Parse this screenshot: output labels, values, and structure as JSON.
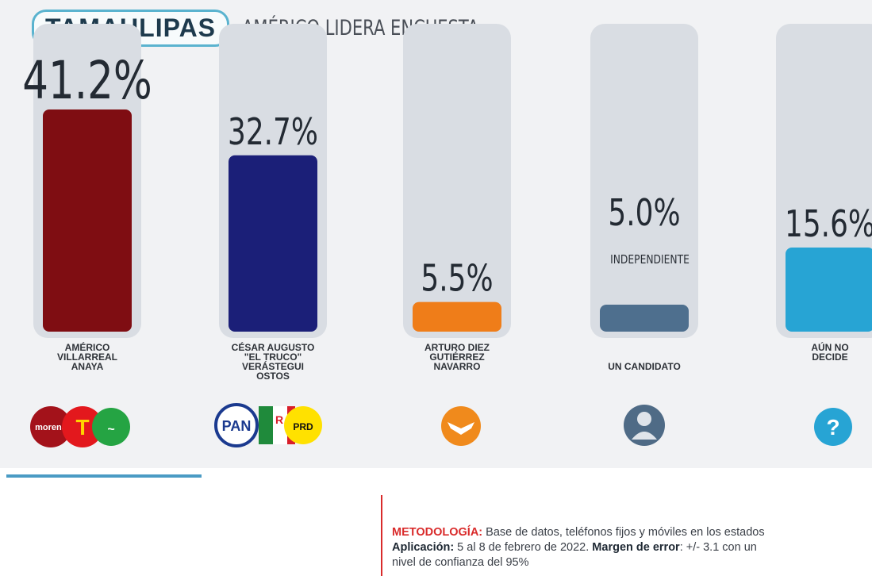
{
  "header": {
    "state": "TAMAULIPAS",
    "headline": "AMÉRICO LIDERA ENCUESTA"
  },
  "candidates": [
    {
      "name_lines": [
        "AMÉRICO",
        "VILLARREAL",
        "ANAYA"
      ],
      "logo": "morena-pt-pvem-logos"
    },
    {
      "name_lines": [
        "CÉSAR AUGUSTO",
        "\"EL TRUCO\"",
        "VERÁSTEGUI",
        "OSTOS"
      ],
      "logo": "pan-pri-prd-logos"
    },
    {
      "name_lines": [
        "ARTURO DIEZ",
        "GUTIÉRREZ",
        "NAVARRO"
      ],
      "logo": "movimiento-ciudadano-logo"
    },
    {
      "name_lines": [
        "UN CANDIDATO"
      ],
      "sublabel": "INDEPENDIENTE",
      "logo": "person-silhouette-icon"
    },
    {
      "name_lines": [
        "AÚN NO",
        "DECIDE"
      ],
      "logo": "question-mark-icon"
    }
  ],
  "colors": {
    "americo": "#7f0d12",
    "cesar": "#1b1f78",
    "arturo": "#ef7d19",
    "independiente": "#4e6f8e",
    "no_decide": "#27a4d4",
    "track": "#d9dde3",
    "accent": "#5ab3cf"
  },
  "chart_data": {
    "type": "bar",
    "title": "AMÉRICO LIDERA ENCUESTA",
    "categories": [
      "AMÉRICO VILLARREAL ANAYA",
      "CÉSAR AUGUSTO \"EL TRUCO\" VERÁSTEGUI OSTOS",
      "ARTURO DIEZ GUTIÉRREZ NAVARRO",
      "UN CANDIDATO INDEPENDIENTE",
      "AÚN NO DECIDE"
    ],
    "values": [
      41.2,
      32.7,
      5.5,
      5.0,
      15.6
    ],
    "value_labels": [
      "41.2%",
      "32.7%",
      "5.5%",
      "5.0%",
      "15.6%"
    ],
    "colors": [
      "#7f0d12",
      "#1b1f78",
      "#ef7d19",
      "#4e6f8e",
      "#27a4d4"
    ],
    "ylim": [
      0,
      41.2
    ],
    "grid": false,
    "legend": "none"
  },
  "methodology": {
    "label1": "METODOLOGÍA:",
    "text1": " Base de datos, teléfonos fijos y móviles en los estados",
    "label2": "Aplicación:",
    "text2": " 5 al 8 de febrero de 2022. ",
    "label3": "Margen de error",
    "text3": ": +/- 3.1 con un",
    "text4": "nivel de confianza del 95%"
  }
}
